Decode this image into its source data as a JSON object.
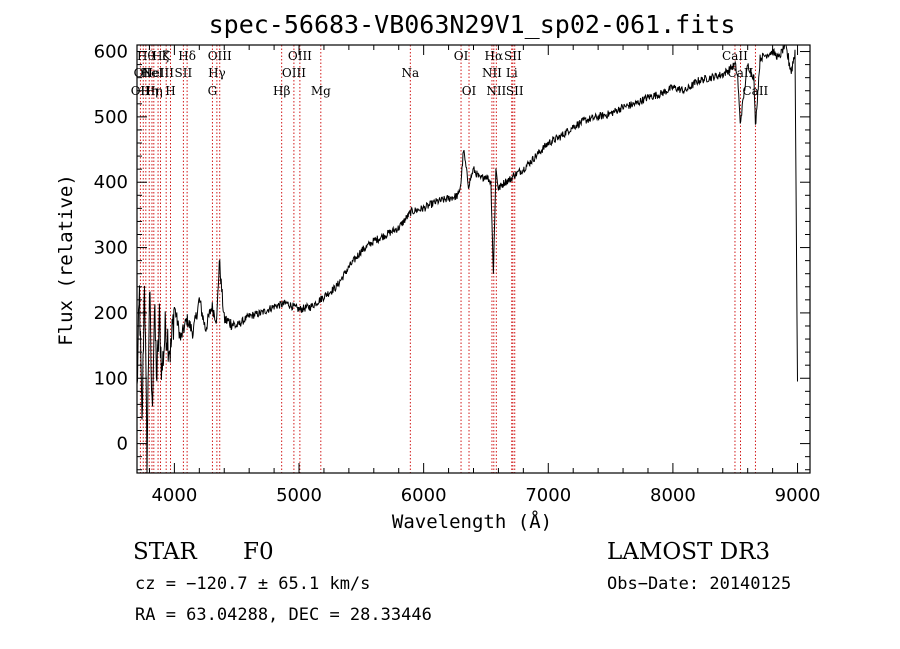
{
  "chart_data": {
    "type": "line",
    "title": "spec-56683-VB063N29V1_sp02-061.fits",
    "xlabel": "Wavelength (Å)",
    "ylabel": "Flux (relative)",
    "xlim": [
      3700,
      9100
    ],
    "ylim": [
      -45,
      610
    ],
    "xticks": [
      4000,
      5000,
      6000,
      7000,
      8000,
      9000
    ],
    "xtick_labels": [
      "4000",
      "5000",
      "6000",
      "7000",
      "8000",
      "9000"
    ],
    "yticks": [
      0,
      100,
      200,
      300,
      400,
      500,
      600
    ],
    "ytick_labels": [
      "0",
      "100",
      "200",
      "300",
      "400",
      "500",
      "600"
    ],
    "series": [
      {
        "name": "flux",
        "x": [
          3700,
          3720,
          3740,
          3760,
          3780,
          3800,
          3820,
          3840,
          3860,
          3880,
          3900,
          3930,
          3970,
          4000,
          4050,
          4100,
          4150,
          4200,
          4250,
          4300,
          4340,
          4360,
          4400,
          4500,
          4600,
          4700,
          4800,
          4900,
          5000,
          5100,
          5200,
          5300,
          5400,
          5500,
          5600,
          5700,
          5800,
          5900,
          6000,
          6100,
          6200,
          6280,
          6300,
          6320,
          6360,
          6400,
          6450,
          6500,
          6540,
          6560,
          6580,
          6600,
          6650,
          6700,
          6720,
          6800,
          6900,
          7000,
          7100,
          7200,
          7300,
          7400,
          7500,
          7600,
          7700,
          7800,
          7900,
          8000,
          8100,
          8200,
          8300,
          8400,
          8500,
          8520,
          8540,
          8600,
          8650,
          8662,
          8700,
          8800,
          8850,
          8900,
          8950,
          8980,
          9000
        ],
        "y": [
          80,
          230,
          20,
          260,
          -30,
          240,
          50,
          200,
          100,
          190,
          110,
          180,
          140,
          210,
          160,
          190,
          170,
          220,
          175,
          210,
          190,
          280,
          190,
          180,
          195,
          200,
          210,
          215,
          205,
          210,
          225,
          240,
          270,
          295,
          310,
          320,
          330,
          355,
          360,
          370,
          375,
          380,
          400,
          450,
          395,
          420,
          405,
          410,
          400,
          260,
          420,
          390,
          400,
          405,
          410,
          420,
          440,
          460,
          470,
          485,
          495,
          500,
          505,
          515,
          520,
          530,
          535,
          545,
          540,
          555,
          560,
          565,
          580,
          560,
          490,
          580,
          560,
          485,
          590,
          600,
          590,
          610,
          570,
          600,
          95
        ]
      }
    ],
    "line_markers": [
      {
        "x": 3727,
        "label": "OII",
        "row": 3
      },
      {
        "x": 3750,
        "label": "OII",
        "row": 2
      },
      {
        "x": 3771,
        "label": "Hθ",
        "row": 1
      },
      {
        "x": 3798,
        "label": "Hη",
        "row": 3
      },
      {
        "x": 3820,
        "label": "HeI",
        "row": 2
      },
      {
        "x": 3835,
        "label": "Hη",
        "row": 3
      },
      {
        "x": 3869,
        "label": "NeIII",
        "row": 2
      },
      {
        "x": 3889,
        "label": "Hζ",
        "row": 1
      },
      {
        "x": 3934,
        "label": "K",
        "row": 1
      },
      {
        "x": 3969,
        "label": "H",
        "row": 3
      },
      {
        "x": 4072,
        "label": "SII",
        "row": 2
      },
      {
        "x": 4102,
        "label": "Hδ",
        "row": 1
      },
      {
        "x": 4305,
        "label": "G",
        "row": 3
      },
      {
        "x": 4341,
        "label": "Hγ",
        "row": 2
      },
      {
        "x": 4364,
        "label": "OIII",
        "row": 1
      },
      {
        "x": 4861,
        "label": "Hβ",
        "row": 3
      },
      {
        "x": 4959,
        "label": "OIII",
        "row": 2
      },
      {
        "x": 5007,
        "label": "OIII",
        "row": 1
      },
      {
        "x": 5175,
        "label": "Mg",
        "row": 3
      },
      {
        "x": 5893,
        "label": "Na",
        "row": 2
      },
      {
        "x": 6300,
        "label": "OI",
        "row": 1
      },
      {
        "x": 6364,
        "label": "OI",
        "row": 3
      },
      {
        "x": 6548,
        "label": "NII",
        "row": 2
      },
      {
        "x": 6563,
        "label": "Hα",
        "row": 1
      },
      {
        "x": 6583,
        "label": "NII",
        "row": 3
      },
      {
        "x": 6707,
        "label": "Li",
        "row": 2
      },
      {
        "x": 6716,
        "label": "SII",
        "row": 1
      },
      {
        "x": 6731,
        "label": "SII",
        "row": 3
      },
      {
        "x": 8498,
        "label": "CaII",
        "row": 1
      },
      {
        "x": 8542,
        "label": "CaII",
        "row": 2
      },
      {
        "x": 8662,
        "label": "CaII",
        "row": 3
      }
    ]
  },
  "info": {
    "object_class": "STAR",
    "subclass": "F0",
    "survey": "LAMOST DR3",
    "redshift": "cz = −120.7 ± 65.1 km/s",
    "obs_date": "Obs−Date: 20140125",
    "coords": "RA =  63.04288, DEC =  28.33446"
  },
  "colors": {
    "line_marker": "#cc0000",
    "spectrum": "#000000",
    "axis": "#000000"
  }
}
